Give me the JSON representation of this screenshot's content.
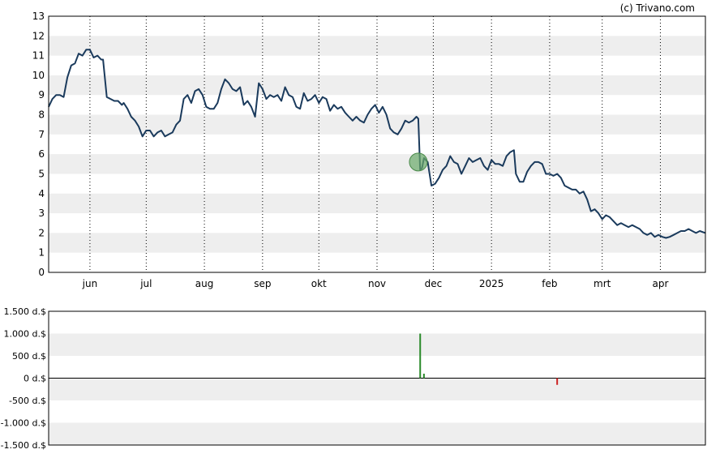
{
  "credit": "(c) Trivano.com",
  "colors": {
    "price_line": "#1a3a5c",
    "band": "#eeeeee",
    "frame": "#000000",
    "marker_fill": "#6aaa6a",
    "vol_positive": "#2a8a2a",
    "vol_negative": "#cc2222"
  },
  "chart_data": [
    {
      "type": "line",
      "title": "",
      "xlabel": "",
      "ylabel": "",
      "ylim": [
        0,
        13
      ],
      "y_ticks": [
        "0",
        "1",
        "2",
        "3",
        "4",
        "5",
        "6",
        "7",
        "8",
        "9",
        "10",
        "11",
        "12",
        "13"
      ],
      "grid": "dotted vertical month lines, alternating horizontal bands",
      "month_labels": [
        {
          "label": "jun",
          "day": 22
        },
        {
          "label": "jul",
          "day": 52
        },
        {
          "label": "aug",
          "day": 83
        },
        {
          "label": "sep",
          "day": 114
        },
        {
          "label": "okt",
          "day": 144
        },
        {
          "label": "nov",
          "day": 175
        },
        {
          "label": "dec",
          "day": 205
        },
        {
          "label": "2025",
          "day": 236
        },
        {
          "label": "feb",
          "day": 267
        },
        {
          "label": "mrt",
          "day": 295
        },
        {
          "label": "apr",
          "day": 326
        }
      ],
      "x_domain_days": [
        0,
        350
      ],
      "series": [
        {
          "points": [
            [
              0,
              8.4
            ],
            [
              2,
              8.8
            ],
            [
              4,
              9.0
            ],
            [
              6,
              9.0
            ],
            [
              8,
              8.9
            ],
            [
              10,
              9.9
            ],
            [
              12,
              10.5
            ],
            [
              14,
              10.6
            ],
            [
              16,
              11.1
            ],
            [
              18,
              11.0
            ],
            [
              20,
              11.3
            ],
            [
              22,
              11.3
            ],
            [
              24,
              10.9
            ],
            [
              26,
              11.0
            ],
            [
              28,
              10.8
            ],
            [
              29,
              10.8
            ],
            [
              31,
              8.9
            ],
            [
              33,
              8.8
            ],
            [
              35,
              8.7
            ],
            [
              37,
              8.7
            ],
            [
              39,
              8.5
            ],
            [
              40,
              8.6
            ],
            [
              42,
              8.3
            ],
            [
              44,
              7.9
            ],
            [
              46,
              7.7
            ],
            [
              48,
              7.4
            ],
            [
              50,
              6.9
            ],
            [
              52,
              7.2
            ],
            [
              54,
              7.2
            ],
            [
              56,
              6.9
            ],
            [
              58,
              7.1
            ],
            [
              60,
              7.2
            ],
            [
              62,
              6.9
            ],
            [
              64,
              7.0
            ],
            [
              66,
              7.1
            ],
            [
              68,
              7.5
            ],
            [
              70,
              7.7
            ],
            [
              72,
              8.8
            ],
            [
              74,
              9.0
            ],
            [
              76,
              8.6
            ],
            [
              78,
              9.2
            ],
            [
              80,
              9.3
            ],
            [
              82,
              9.0
            ],
            [
              84,
              8.4
            ],
            [
              86,
              8.3
            ],
            [
              88,
              8.3
            ],
            [
              90,
              8.6
            ],
            [
              92,
              9.3
            ],
            [
              94,
              9.8
            ],
            [
              96,
              9.6
            ],
            [
              98,
              9.3
            ],
            [
              100,
              9.2
            ],
            [
              102,
              9.4
            ],
            [
              104,
              8.5
            ],
            [
              106,
              8.7
            ],
            [
              108,
              8.4
            ],
            [
              110,
              7.9
            ],
            [
              112,
              9.6
            ],
            [
              114,
              9.3
            ],
            [
              116,
              8.8
            ],
            [
              118,
              9.0
            ],
            [
              120,
              8.9
            ],
            [
              122,
              9.0
            ],
            [
              124,
              8.7
            ],
            [
              126,
              9.4
            ],
            [
              128,
              9.0
            ],
            [
              130,
              8.9
            ],
            [
              132,
              8.4
            ],
            [
              134,
              8.3
            ],
            [
              136,
              9.1
            ],
            [
              138,
              8.7
            ],
            [
              140,
              8.8
            ],
            [
              142,
              9.0
            ],
            [
              144,
              8.6
            ],
            [
              146,
              8.9
            ],
            [
              148,
              8.8
            ],
            [
              150,
              8.2
            ],
            [
              152,
              8.5
            ],
            [
              154,
              8.3
            ],
            [
              156,
              8.4
            ],
            [
              158,
              8.1
            ],
            [
              160,
              7.9
            ],
            [
              162,
              7.7
            ],
            [
              164,
              7.9
            ],
            [
              166,
              7.7
            ],
            [
              168,
              7.6
            ],
            [
              170,
              8.0
            ],
            [
              172,
              8.3
            ],
            [
              174,
              8.5
            ],
            [
              176,
              8.1
            ],
            [
              178,
              8.4
            ],
            [
              180,
              8.0
            ],
            [
              182,
              7.3
            ],
            [
              184,
              7.1
            ],
            [
              186,
              7.0
            ],
            [
              188,
              7.3
            ],
            [
              190,
              7.7
            ],
            [
              192,
              7.6
            ],
            [
              194,
              7.7
            ],
            [
              196,
              7.9
            ],
            [
              197,
              7.8
            ],
            [
              198,
              5.2
            ],
            [
              199,
              5.3
            ],
            [
              200,
              5.8
            ],
            [
              202,
              5.6
            ],
            [
              204,
              4.4
            ],
            [
              206,
              4.5
            ],
            [
              208,
              4.8
            ],
            [
              210,
              5.2
            ],
            [
              212,
              5.4
            ],
            [
              214,
              5.9
            ],
            [
              216,
              5.6
            ],
            [
              218,
              5.5
            ],
            [
              220,
              5.0
            ],
            [
              222,
              5.4
            ],
            [
              224,
              5.8
            ],
            [
              226,
              5.6
            ],
            [
              228,
              5.7
            ],
            [
              230,
              5.8
            ],
            [
              232,
              5.4
            ],
            [
              234,
              5.2
            ],
            [
              236,
              5.7
            ],
            [
              238,
              5.5
            ],
            [
              240,
              5.5
            ],
            [
              242,
              5.4
            ],
            [
              244,
              5.9
            ],
            [
              246,
              6.1
            ],
            [
              248,
              6.2
            ],
            [
              249,
              5.0
            ],
            [
              251,
              4.6
            ],
            [
              253,
              4.6
            ],
            [
              255,
              5.1
            ],
            [
              257,
              5.4
            ],
            [
              259,
              5.6
            ],
            [
              261,
              5.6
            ],
            [
              263,
              5.5
            ],
            [
              265,
              5.0
            ],
            [
              267,
              5.0
            ],
            [
              269,
              4.9
            ],
            [
              271,
              5.0
            ],
            [
              273,
              4.8
            ],
            [
              275,
              4.4
            ],
            [
              277,
              4.3
            ],
            [
              279,
              4.2
            ],
            [
              281,
              4.2
            ],
            [
              283,
              4.0
            ],
            [
              285,
              4.1
            ],
            [
              287,
              3.7
            ],
            [
              289,
              3.1
            ],
            [
              291,
              3.2
            ],
            [
              293,
              3.0
            ],
            [
              295,
              2.7
            ],
            [
              297,
              2.9
            ],
            [
              299,
              2.8
            ],
            [
              301,
              2.6
            ],
            [
              303,
              2.4
            ],
            [
              305,
              2.5
            ],
            [
              307,
              2.4
            ],
            [
              309,
              2.3
            ],
            [
              311,
              2.4
            ],
            [
              313,
              2.3
            ],
            [
              315,
              2.2
            ],
            [
              317,
              2.0
            ],
            [
              319,
              1.9
            ],
            [
              321,
              2.0
            ],
            [
              323,
              1.8
            ],
            [
              325,
              1.9
            ],
            [
              327,
              1.8
            ],
            [
              329,
              1.75
            ],
            [
              331,
              1.8
            ],
            [
              333,
              1.9
            ],
            [
              335,
              2.0
            ],
            [
              337,
              2.1
            ],
            [
              339,
              2.1
            ],
            [
              341,
              2.2
            ],
            [
              343,
              2.1
            ],
            [
              345,
              2.0
            ],
            [
              347,
              2.1
            ],
            [
              350,
              2.0
            ]
          ]
        }
      ],
      "marker": {
        "day": 197,
        "value": 5.6
      }
    },
    {
      "type": "bar",
      "title": "",
      "ylim": [
        -1500,
        1500
      ],
      "y_ticks": [
        "1.500 d.$",
        "1.000 d.$",
        "500 d.$",
        "0 d.$",
        "-500 d.$",
        "-1.000 d.$",
        "-1.500 d.$"
      ],
      "bars": [
        {
          "day": 198,
          "value": 1000
        },
        {
          "day": 200,
          "value": 100
        },
        {
          "day": 271,
          "value": -150
        }
      ]
    }
  ]
}
